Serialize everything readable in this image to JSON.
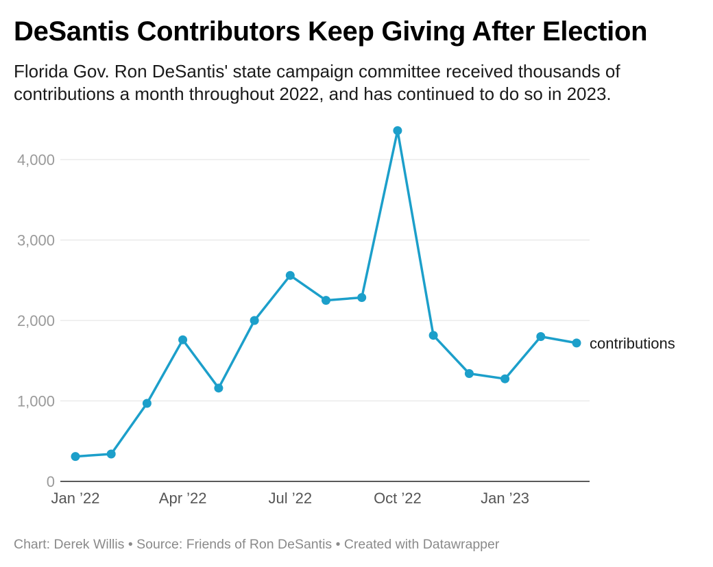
{
  "header": {
    "title": "DeSantis Contributors Keep Giving After Election",
    "subtitle": "Florida Gov. Ron DeSantis' state campaign committee received thousands of contributions a month throughout 2022, and has continued to do so in 2023."
  },
  "footer": {
    "credit": "Chart: Derek Willis • Source: Friends of Ron DeSantis • Created with Datawrapper"
  },
  "colors": {
    "line": "#1c9fca",
    "grid": "#e2e2e2",
    "axis": "#222222"
  },
  "chart_data": {
    "type": "line",
    "title": "DeSantis Contributors Keep Giving After Election",
    "xlabel": "",
    "ylabel": "",
    "x": [
      "2022-01",
      "2022-02",
      "2022-03",
      "2022-04",
      "2022-05",
      "2022-06",
      "2022-07",
      "2022-08",
      "2022-09",
      "2022-10",
      "2022-11",
      "2022-12",
      "2023-01",
      "2023-02",
      "2023-03"
    ],
    "x_ticks": [
      {
        "label": "Jan ’22",
        "index": 0
      },
      {
        "label": "Apr ’22",
        "index": 3
      },
      {
        "label": "Jul ’22",
        "index": 6
      },
      {
        "label": "Oct ’22",
        "index": 9
      },
      {
        "label": "Jan ’23",
        "index": 12
      }
    ],
    "y_ticks": [
      {
        "label": "0",
        "value": 0
      },
      {
        "label": "1,000",
        "value": 1000
      },
      {
        "label": "2,000",
        "value": 2000
      },
      {
        "label": "3,000",
        "value": 3000
      },
      {
        "label": "4,000",
        "value": 4000
      }
    ],
    "ylim": [
      0,
      4000
    ],
    "grid": true,
    "legend": "inline-end",
    "series": [
      {
        "name": "contributions",
        "values": [
          310,
          340,
          970,
          1760,
          1160,
          2000,
          2560,
          2250,
          2285,
          4360,
          1815,
          1340,
          1275,
          1800,
          1720
        ]
      }
    ]
  }
}
